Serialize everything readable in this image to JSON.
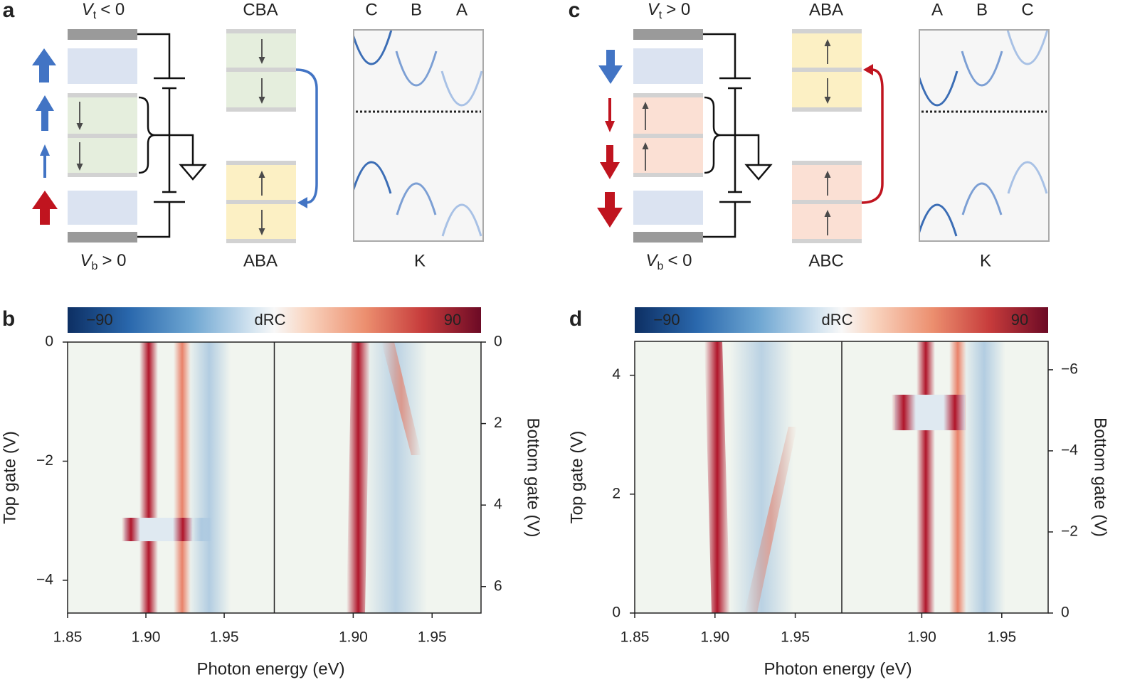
{
  "panels": {
    "a": {
      "label": "a",
      "top_gate": {
        "symbol": "V",
        "subscript": "t",
        "relation": "< 0"
      },
      "bottom_gate": {
        "symbol": "V",
        "subscript": "b",
        "relation": "> 0"
      },
      "stack_top": "CBA",
      "stack_bottom": "ABA",
      "bands": [
        "C",
        "B",
        "A"
      ],
      "momentum": "K"
    },
    "b": {
      "label": "b",
      "colorbar": {
        "label": "dRC",
        "clim": [
          -90,
          90
        ],
        "ticks": [
          {
            "value": -90,
            "label": "−90"
          },
          90
        ]
      },
      "ylabel": "Top gate (V)",
      "y2label": "Bottom gate (V)",
      "xlabel": "Photon energy (eV)",
      "ylim": [
        -4.55,
        0
      ],
      "yticks": [
        0,
        {
          "value": -2,
          "label": "−2"
        },
        {
          "value": -4,
          "label": "−4"
        }
      ],
      "y2lim": [
        6.65,
        0
      ],
      "y2ticks": [
        0,
        2,
        4,
        6
      ],
      "xlim_left": [
        1.85,
        1.982
      ],
      "xticks_left": [
        1.85,
        {
          "value": 1.9,
          "label": "1.90"
        },
        1.95
      ],
      "xlim_right": [
        1.85,
        1.981
      ],
      "xticks_right": [
        {
          "value": 1.9,
          "label": "1.90"
        },
        1.95
      ]
    },
    "c": {
      "label": "c",
      "top_gate": {
        "symbol": "V",
        "subscript": "t",
        "relation": "> 0"
      },
      "bottom_gate": {
        "symbol": "V",
        "subscript": "b",
        "relation": "< 0"
      },
      "stack_top": "ABA",
      "stack_bottom": "ABC",
      "bands": [
        "A",
        "B",
        "C"
      ],
      "momentum": "K"
    },
    "d": {
      "label": "d",
      "colorbar": {
        "label": "dRC",
        "clim": [
          -90,
          90
        ],
        "ticks": [
          {
            "value": -90,
            "label": "−90"
          },
          90
        ]
      },
      "ylabel": "Top gate (V)",
      "y2label": "Bottom gate (V)",
      "xlabel": "Photon energy (eV)",
      "ylim": [
        0,
        4.57
      ],
      "yticks": [
        0,
        2,
        4
      ],
      "y2lim": [
        0,
        -6.7
      ],
      "y2ticks": [
        0,
        {
          "value": -2,
          "label": "−2"
        },
        {
          "value": -4,
          "label": "−4"
        },
        {
          "value": -6,
          "label": "−6"
        }
      ],
      "xlim_left": [
        1.85,
        1.979
      ],
      "xticks_left": [
        1.85,
        {
          "value": 1.9,
          "label": "1.90"
        },
        1.95
      ],
      "xlim_right": [
        1.85,
        1.979
      ],
      "xticks_right": [
        {
          "value": 1.9,
          "label": "1.90"
        },
        1.95
      ]
    }
  }
}
